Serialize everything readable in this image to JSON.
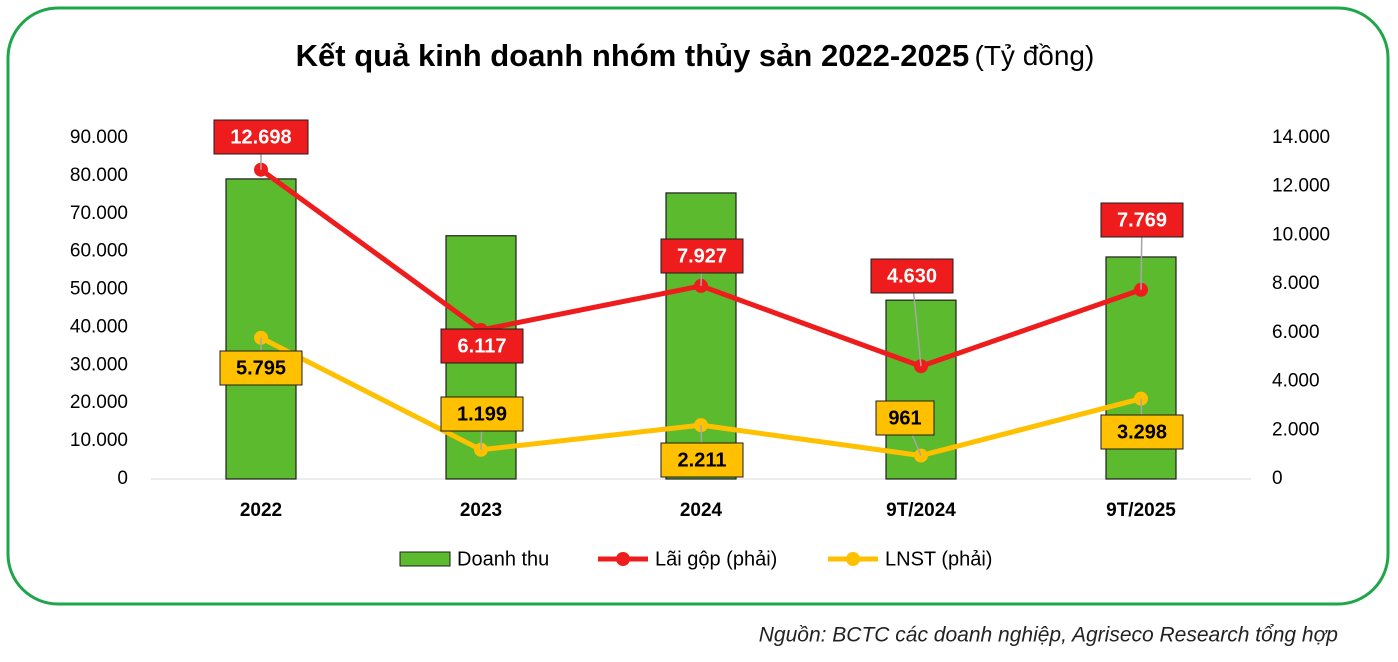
{
  "chart_data": {
    "type": "combo",
    "title": "Kết quả kinh doanh nhóm thủy sản 2022-2025",
    "subtitle": "(Tỷ đồng)",
    "categories": [
      "2022",
      "2023",
      "2024",
      "9T/2024",
      "9T/2025"
    ],
    "series": [
      {
        "name": "Doanh thu",
        "type": "bar",
        "color": "#5cba2e",
        "values": [
          79200,
          64200,
          75500,
          47200,
          58600
        ]
      },
      {
        "name": "Lãi gộp (phải)",
        "type": "line",
        "axis": "y2",
        "color": "#ee1c1c",
        "values": [
          12698,
          6117,
          7927,
          4630,
          7769
        ],
        "value_labels": [
          "12.698",
          "6.117",
          "7.927",
          "4.630",
          "7.769"
        ]
      },
      {
        "name": "LNST (phải)",
        "type": "line",
        "axis": "y2",
        "color": "#ffc000",
        "values": [
          5795,
          1199,
          2211,
          961,
          3298
        ],
        "value_labels": [
          "5.795",
          "1.199",
          "2.211",
          "961",
          "3.298"
        ]
      }
    ],
    "ylim": [
      0,
      90000
    ],
    "yticks": [
      0,
      {
        "value": 10000,
        "label": "10.000"
      },
      {
        "value": 20000,
        "label": "20.000"
      },
      {
        "value": 30000,
        "label": "30.000"
      },
      {
        "value": 40000,
        "label": "40.000"
      },
      {
        "value": 50000,
        "label": "50.000"
      },
      {
        "value": 60000,
        "label": "60.000"
      },
      {
        "value": 70000,
        "label": "70.000"
      },
      {
        "value": 80000,
        "label": "80.000"
      },
      {
        "value": 90000,
        "label": "90.000"
      }
    ],
    "y2lim": [
      0,
      14000
    ],
    "y2ticks": [
      0,
      {
        "value": 2000,
        "label": "2.000"
      },
      {
        "value": 4000,
        "label": "4.000"
      },
      {
        "value": 6000,
        "label": "6.000"
      },
      {
        "value": 8000,
        "label": "8.000"
      },
      {
        "value": 10000,
        "label": "10.000"
      },
      {
        "value": 12000,
        "label": "12.000"
      },
      {
        "value": 14000,
        "label": "14.000"
      }
    ],
    "grid": false,
    "legend": "bottom"
  },
  "source": "Nguồn: BCTC các doanh nghiệp, Agriseco Research tổng hợp"
}
